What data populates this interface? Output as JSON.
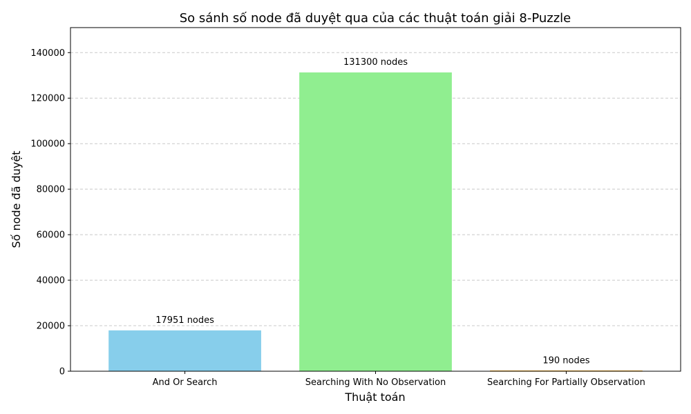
{
  "chart_data": {
    "type": "bar",
    "title": "So sánh số node đã duyệt qua của các thuật toán giải 8-Puzzle",
    "xlabel": "Thuật toán",
    "ylabel": "Số node đã duyệt",
    "categories": [
      "And Or Search",
      "Searching With No Observation",
      "Searching For Partially Observation"
    ],
    "values": [
      17951,
      131300,
      190
    ],
    "value_labels": [
      "17951 nodes",
      "131300 nodes",
      "190 nodes"
    ],
    "colors": [
      "#87CEEB",
      "#90EE90",
      "#FFA500"
    ],
    "ylim": [
      0,
      151000
    ],
    "yticks": [
      0,
      20000,
      40000,
      60000,
      80000,
      100000,
      120000,
      140000
    ],
    "ytick_labels": [
      "0",
      "20000",
      "40000",
      "60000",
      "80000",
      "100000",
      "120000",
      "140000"
    ],
    "grid": "y-dashed",
    "legend": "none"
  }
}
